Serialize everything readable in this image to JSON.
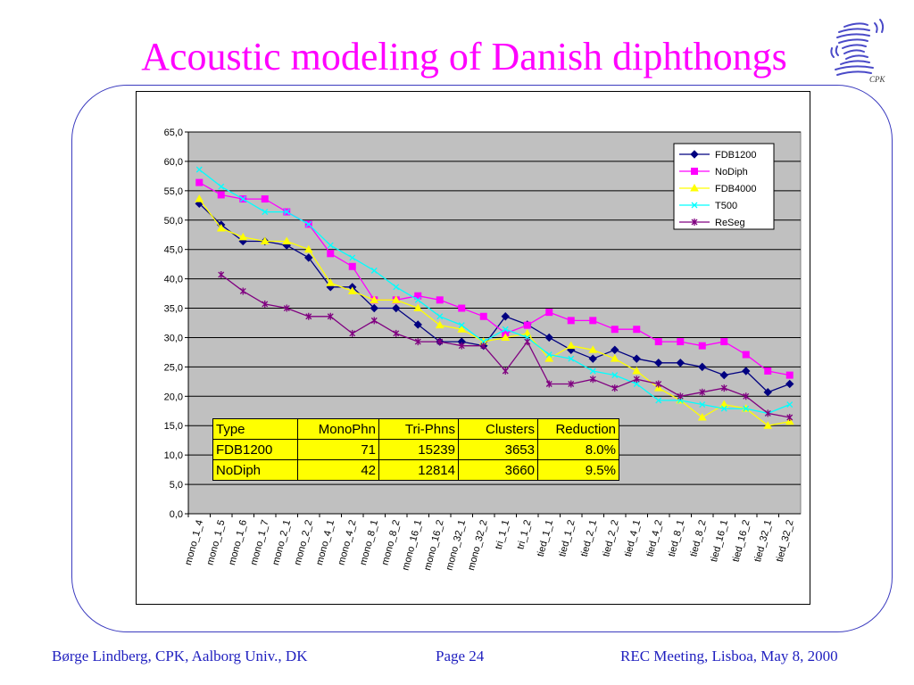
{
  "slide": {
    "title": "Acoustic modeling of Danish diphthongs",
    "logo_text": "CPK"
  },
  "footer": {
    "left": "Børge Lindberg, CPK, Aalborg Univ., DK",
    "center": "Page 24",
    "right": "REC Meeting, Lisboa, May 8, 2000"
  },
  "table": {
    "headers": [
      "Type",
      "MonoPhn",
      "Tri-Phns",
      "Clusters",
      "Reduction"
    ],
    "rows": [
      [
        "FDB1200",
        "71",
        "15239",
        "3653",
        "8.0%"
      ],
      [
        "NoDiph",
        "42",
        "12814",
        "3660",
        "9.5%"
      ]
    ]
  },
  "chart_data": {
    "type": "line",
    "categories": [
      "mono_1_4",
      "mono_1_5",
      "mono_1_6",
      "mono_1_7",
      "mono_2_1",
      "mono_2_2",
      "mono_4_1",
      "mono_4_2",
      "mono_8_1",
      "mono_8_2",
      "mono_16_1",
      "mono_16_2",
      "mono_32_1",
      "mono_32_2",
      "tri_1_1",
      "tri_1_2",
      "tied_1_1",
      "tied_1_2",
      "tied_2_1",
      "tied_2_2",
      "tied_4_1",
      "tied_4_2",
      "tied_8_1",
      "tied_8_2",
      "tied_16_1",
      "tied_16_2",
      "tied_32_1",
      "tied_32_2"
    ],
    "ylim": [
      0,
      65
    ],
    "yticks": [
      "0,0",
      "5,0",
      "10,0",
      "15,0",
      "20,0",
      "25,0",
      "30,0",
      "35,0",
      "40,0",
      "45,0",
      "50,0",
      "55,0",
      "60,0",
      "65,0"
    ],
    "grid": true,
    "legend_position": "top-right",
    "series": [
      {
        "name": "FDB1200",
        "color": "#000080",
        "marker": "diamond",
        "values": [
          52.8,
          49.2,
          46.4,
          46.4,
          45.7,
          43.6,
          38.6,
          38.6,
          35.0,
          35.0,
          32.2,
          29.3,
          29.3,
          28.6,
          33.6,
          32.2,
          30.0,
          27.9,
          26.4,
          27.9,
          26.4,
          25.7,
          25.7,
          25.0,
          23.6,
          24.3,
          20.7,
          22.1
        ]
      },
      {
        "name": "NoDiph",
        "color": "#ff00ff",
        "marker": "square",
        "values": [
          56.4,
          54.3,
          53.6,
          53.6,
          51.4,
          49.3,
          44.3,
          42.1,
          36.4,
          36.4,
          37.1,
          36.4,
          35.0,
          33.6,
          30.7,
          32.1,
          34.3,
          32.9,
          32.9,
          31.4,
          31.4,
          29.3,
          29.3,
          28.6,
          29.3,
          27.1,
          24.3,
          23.6
        ]
      },
      {
        "name": "FDB4000",
        "color": "#ffff00",
        "marker": "triangle",
        "values": [
          53.6,
          48.6,
          47.1,
          46.4,
          46.4,
          45.0,
          39.3,
          37.9,
          36.4,
          36.4,
          35.0,
          32.1,
          31.4,
          29.3,
          30.0,
          30.7,
          26.4,
          28.6,
          27.9,
          26.4,
          24.3,
          21.4,
          19.3,
          16.4,
          18.6,
          17.9,
          15.0,
          15.7
        ]
      },
      {
        "name": "T500",
        "color": "#00ffff",
        "marker": "x",
        "values": [
          58.6,
          55.7,
          53.6,
          51.4,
          51.4,
          49.3,
          45.7,
          43.6,
          41.4,
          38.6,
          36.4,
          33.6,
          32.1,
          29.3,
          31.4,
          30.0,
          27.1,
          26.4,
          24.3,
          23.6,
          22.1,
          19.3,
          19.3,
          18.6,
          17.9,
          17.9,
          17.1,
          18.6
        ]
      },
      {
        "name": "ReSeg",
        "color": "#800080",
        "marker": "star",
        "values": [
          null,
          40.7,
          37.9,
          35.7,
          35.0,
          33.6,
          33.6,
          30.7,
          32.9,
          30.7,
          29.3,
          29.3,
          28.6,
          28.6,
          24.3,
          29.3,
          22.1,
          22.1,
          22.9,
          21.4,
          22.9,
          22.1,
          20.0,
          20.7,
          21.4,
          20.0,
          17.1,
          16.4
        ]
      }
    ]
  }
}
